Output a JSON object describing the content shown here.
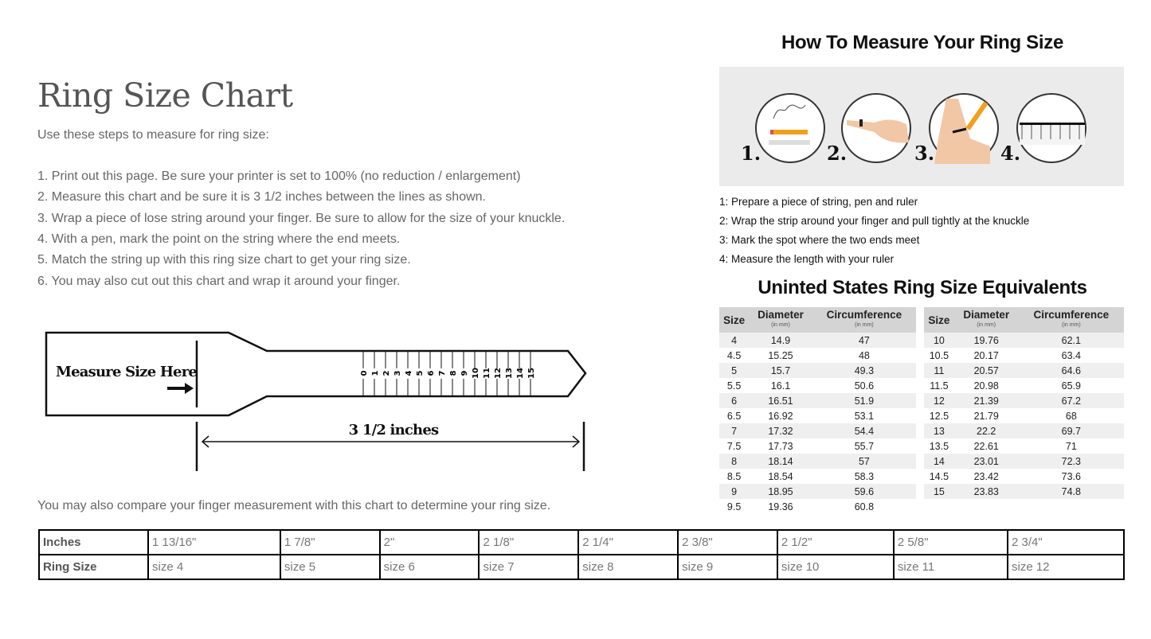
{
  "left": {
    "title": "Ring Size Chart",
    "intro": "Use these steps to measure for ring size:",
    "steps": [
      "1. Print out this page. Be sure your printer is set to 100% (no reduction / enlargement)",
      "2. Measure this chart and be sure it is 3 1/2 inches between the lines as shown.",
      "3. Wrap a piece of lose string around your finger. Be sure to allow for the size of your knuckle.",
      "4. With a pen, mark the point on the string where the end meets.",
      "5. Match the string up with this ring size chart to get your ring size.",
      "6. You may also cut out this chart and wrap it around your finger."
    ],
    "sizer": {
      "measure_label": "Measure Size Here",
      "length_label": "3 1/2 inches",
      "scale": [
        "0",
        "1",
        "2",
        "3",
        "4",
        "5",
        "6",
        "7",
        "8",
        "9",
        "10",
        "11",
        "12",
        "13",
        "14",
        "15"
      ]
    },
    "compare_text": "You may also compare your finger measurement with this chart to determine your ring size."
  },
  "compare_table": {
    "row_headers": [
      "Inches",
      "Ring Size"
    ],
    "inches": [
      "1 13/16\"",
      "1 7/8\"",
      "2\"",
      "2 1/8\"",
      "2 1/4\"",
      "2 3/8\"",
      "2 1/2\"",
      "2 5/8\"",
      "2 3/4\""
    ],
    "sizes": [
      "size 4",
      "size 5",
      "size 6",
      "size 7",
      "size 8",
      "size 9",
      "size 10",
      "size 11",
      "size 12"
    ]
  },
  "right": {
    "title": "How To Measure Your Ring Size",
    "step_numbers": [
      "1.",
      "2.",
      "3.",
      "4."
    ],
    "steps": [
      "1: Prepare a piece of string, pen and ruler",
      "2: Wrap the strip around your finger and pull tightly at the knuckle",
      "3: Mark the spot where the two ends meet",
      "4: Measure the length with your ruler"
    ],
    "us_title": "Uninted States Ring Size Equivalents",
    "headers": {
      "size": "Size",
      "diameter": "Diameter",
      "circumference": "Circumference",
      "unit": "(in mm)"
    },
    "left_rows": [
      [
        "4",
        "14.9",
        "47"
      ],
      [
        "4.5",
        "15.25",
        "48"
      ],
      [
        "5",
        "15.7",
        "49.3"
      ],
      [
        "5.5",
        "16.1",
        "50.6"
      ],
      [
        "6",
        "16.51",
        "51.9"
      ],
      [
        "6.5",
        "16.92",
        "53.1"
      ],
      [
        "7",
        "17.32",
        "54.4"
      ],
      [
        "7.5",
        "17.73",
        "55.7"
      ],
      [
        "8",
        "18.14",
        "57"
      ],
      [
        "8.5",
        "18.54",
        "58.3"
      ],
      [
        "9",
        "18.95",
        "59.6"
      ],
      [
        "9.5",
        "19.36",
        "60.8"
      ]
    ],
    "right_rows": [
      [
        "10",
        "19.76",
        "62.1"
      ],
      [
        "10.5",
        "20.17",
        "63.4"
      ],
      [
        "11",
        "20.57",
        "64.6"
      ],
      [
        "11.5",
        "20.98",
        "65.9"
      ],
      [
        "12",
        "21.39",
        "67.2"
      ],
      [
        "12.5",
        "21.79",
        "68"
      ],
      [
        "13",
        "22.2",
        "69.7"
      ],
      [
        "13.5",
        "22.61",
        "71"
      ],
      [
        "14",
        "23.01",
        "72.3"
      ],
      [
        "14.5",
        "23.42",
        "73.6"
      ],
      [
        "15",
        "23.83",
        "74.8"
      ],
      [
        "",
        "",
        ""
      ]
    ]
  }
}
